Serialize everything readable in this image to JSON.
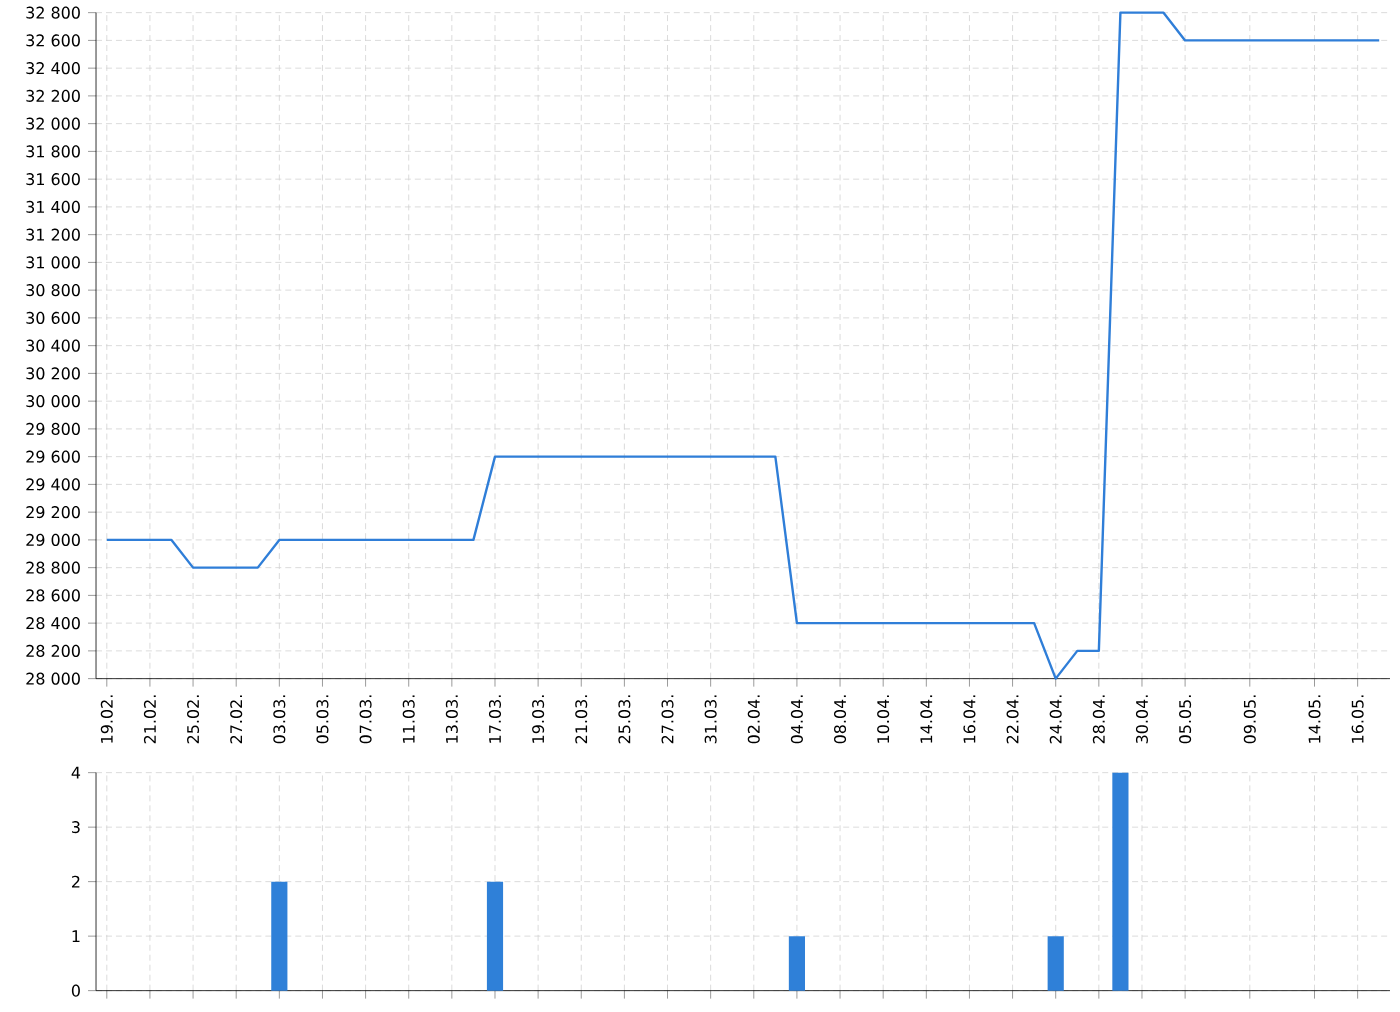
{
  "chart_data": [
    {
      "type": "line",
      "categories": [
        "19.02.",
        null,
        "21.02.",
        null,
        "25.02.",
        null,
        "27.02.",
        null,
        "03.03.",
        null,
        "05.03.",
        null,
        "07.03.",
        null,
        "11.03.",
        null,
        "13.03.",
        null,
        "17.03.",
        null,
        "19.03.",
        null,
        "21.03.",
        null,
        "25.03.",
        null,
        "27.03.",
        null,
        "31.03.",
        null,
        "02.04.",
        null,
        "04.04.",
        null,
        "08.04.",
        null,
        "10.04.",
        null,
        "14.04.",
        null,
        "16.04.",
        null,
        "22.04.",
        null,
        "24.04.",
        null,
        "28.04.",
        null,
        "30.04.",
        null,
        "05.05.",
        null,
        null,
        "09.05.",
        null,
        null,
        "14.05.",
        null,
        "16.05.",
        null
      ],
      "values": [
        29000,
        29000,
        29000,
        29000,
        28800,
        28800,
        28800,
        28800,
        29000,
        29000,
        29000,
        29000,
        29000,
        29000,
        29000,
        29000,
        29000,
        29000,
        29600,
        29600,
        29600,
        29600,
        29600,
        29600,
        29600,
        29600,
        29600,
        29600,
        29600,
        29600,
        29600,
        29600,
        28400,
        28400,
        28400,
        28400,
        28400,
        28400,
        28400,
        28400,
        28400,
        28400,
        28400,
        28400,
        28000,
        28200,
        28200,
        32800,
        32800,
        32800,
        32600,
        32600,
        32600,
        32600,
        32600,
        32600,
        32600,
        32600,
        32600,
        32600
      ],
      "color": "#2f7ed8",
      "marker": "none",
      "line_style": "solid",
      "grid": true,
      "ylim": [
        28000,
        32800
      ],
      "yticks": [
        {
          "value": 28000,
          "label": "28 000"
        },
        {
          "value": 28200,
          "label": "28 200"
        },
        {
          "value": 28400,
          "label": "28 400"
        },
        {
          "value": 28600,
          "label": "28 600"
        },
        {
          "value": 28800,
          "label": "28 800"
        },
        {
          "value": 29000,
          "label": "29 000"
        },
        {
          "value": 29200,
          "label": "29 200"
        },
        {
          "value": 29400,
          "label": "29 400"
        },
        {
          "value": 29600,
          "label": "29 600"
        },
        {
          "value": 29800,
          "label": "29 800"
        },
        {
          "value": 30000,
          "label": "30 000"
        },
        {
          "value": 30200,
          "label": "30 200"
        },
        {
          "value": 30400,
          "label": "30 400"
        },
        {
          "value": 30600,
          "label": "30 600"
        },
        {
          "value": 30800,
          "label": "30 800"
        },
        {
          "value": 31000,
          "label": "31 000"
        },
        {
          "value": 31200,
          "label": "31 200"
        },
        {
          "value": 31400,
          "label": "31 400"
        },
        {
          "value": 31600,
          "label": "31 600"
        },
        {
          "value": 31800,
          "label": "31 800"
        },
        {
          "value": 32000,
          "label": "32 000"
        },
        {
          "value": 32200,
          "label": "32 200"
        },
        {
          "value": 32400,
          "label": "32 400"
        },
        {
          "value": 32600,
          "label": "32 600"
        },
        {
          "value": 32800,
          "label": "32 800"
        }
      ]
    },
    {
      "type": "bar",
      "categories": [
        "19.02.",
        null,
        "21.02.",
        null,
        "25.02.",
        null,
        "27.02.",
        null,
        "03.03.",
        null,
        "05.03.",
        null,
        "07.03.",
        null,
        "11.03.",
        null,
        "13.03.",
        null,
        "17.03.",
        null,
        "19.03.",
        null,
        "21.03.",
        null,
        "25.03.",
        null,
        "27.03.",
        null,
        "31.03.",
        null,
        "02.04.",
        null,
        "04.04.",
        null,
        "08.04.",
        null,
        "10.04.",
        null,
        "14.04.",
        null,
        "16.04.",
        null,
        "22.04.",
        null,
        "24.04.",
        null,
        "28.04.",
        null,
        "30.04.",
        null,
        "05.05.",
        null,
        null,
        "09.05.",
        null,
        null,
        "14.05.",
        null,
        "16.05.",
        null
      ],
      "values": [
        null,
        null,
        null,
        null,
        null,
        null,
        null,
        null,
        2,
        null,
        null,
        null,
        null,
        null,
        null,
        null,
        null,
        null,
        2,
        null,
        null,
        null,
        null,
        null,
        null,
        null,
        null,
        null,
        null,
        null,
        null,
        null,
        1,
        null,
        null,
        null,
        null,
        null,
        null,
        null,
        null,
        null,
        null,
        null,
        1,
        null,
        null,
        4,
        null,
        null,
        null,
        null,
        null,
        null,
        null,
        null,
        null,
        null,
        null,
        null
      ],
      "color": "#2f80d8",
      "grid": true,
      "tick_labels": "y",
      "ylim": [
        0,
        4
      ],
      "yticks": [
        0,
        1,
        2,
        3,
        4
      ]
    }
  ]
}
